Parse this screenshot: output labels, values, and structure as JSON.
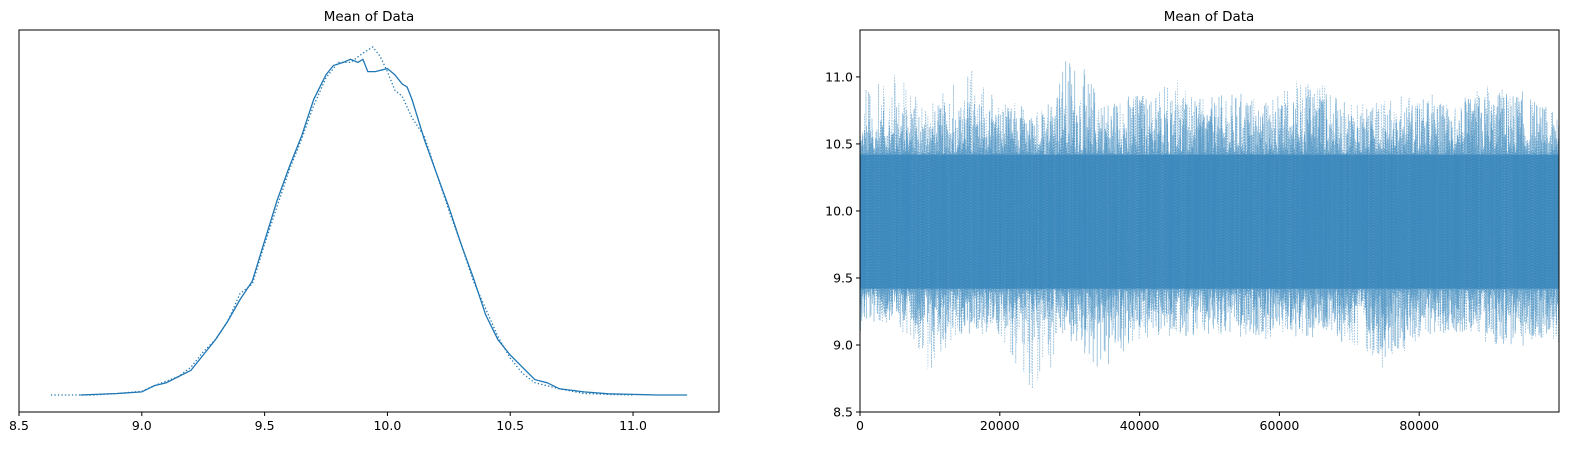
{
  "chart_data": [
    {
      "type": "line",
      "subtype": "density",
      "title": "Mean of Data",
      "xlabel": "",
      "ylabel": "",
      "xlim": [
        8.5,
        11.35
      ],
      "ylim": [
        0,
        1.2
      ],
      "xticks": [
        8.5,
        9.0,
        9.5,
        10.0,
        10.5,
        11.0
      ],
      "xtick_labels": [
        "8.5",
        "9.0",
        "9.5",
        "10.0",
        "10.5",
        "11.0"
      ],
      "yticks": [],
      "grid": false,
      "color": "#1f77b4",
      "series": [
        {
          "style": "solid",
          "x": [
            8.75,
            8.9,
            9.0,
            9.05,
            9.1,
            9.15,
            9.2,
            9.25,
            9.3,
            9.35,
            9.4,
            9.45,
            9.5,
            9.55,
            9.6,
            9.65,
            9.7,
            9.75,
            9.78,
            9.82,
            9.85,
            9.88,
            9.9,
            9.92,
            9.95,
            10.0,
            10.03,
            10.06,
            10.08,
            10.1,
            10.15,
            10.2,
            10.25,
            10.3,
            10.35,
            10.4,
            10.45,
            10.5,
            10.55,
            10.6,
            10.65,
            10.7,
            10.8,
            10.9,
            11.0,
            11.1,
            11.22
          ],
          "y": [
            0.0,
            0.005,
            0.01,
            0.03,
            0.04,
            0.06,
            0.08,
            0.13,
            0.18,
            0.24,
            0.31,
            0.37,
            0.5,
            0.63,
            0.74,
            0.84,
            0.96,
            1.04,
            1.07,
            1.08,
            1.09,
            1.08,
            1.09,
            1.05,
            1.05,
            1.06,
            1.04,
            1.01,
            1.0,
            0.96,
            0.83,
            0.72,
            0.61,
            0.49,
            0.38,
            0.26,
            0.18,
            0.13,
            0.09,
            0.05,
            0.04,
            0.02,
            0.01,
            0.004,
            0.002,
            0.0,
            0.0
          ]
        },
        {
          "style": "dotted",
          "x": [
            8.63,
            8.8,
            8.9,
            9.0,
            9.05,
            9.1,
            9.15,
            9.2,
            9.25,
            9.3,
            9.35,
            9.4,
            9.45,
            9.5,
            9.55,
            9.6,
            9.65,
            9.7,
            9.75,
            9.8,
            9.85,
            9.9,
            9.94,
            9.97,
            10.0,
            10.03,
            10.06,
            10.1,
            10.15,
            10.2,
            10.25,
            10.3,
            10.35,
            10.4,
            10.45,
            10.5,
            10.55,
            10.6,
            10.7,
            10.8,
            10.9,
            11.0
          ],
          "y": [
            0.0,
            0.0,
            0.005,
            0.012,
            0.03,
            0.045,
            0.06,
            0.09,
            0.14,
            0.18,
            0.24,
            0.33,
            0.36,
            0.49,
            0.61,
            0.73,
            0.83,
            0.94,
            1.03,
            1.08,
            1.08,
            1.11,
            1.13,
            1.1,
            1.05,
            0.99,
            0.97,
            0.9,
            0.84,
            0.72,
            0.6,
            0.49,
            0.37,
            0.28,
            0.19,
            0.12,
            0.07,
            0.04,
            0.02,
            0.005,
            0.002,
            0.0
          ]
        }
      ]
    },
    {
      "type": "line",
      "subtype": "trace",
      "title": "Mean of Data",
      "xlabel": "",
      "ylabel": "",
      "xlim": [
        0,
        100000
      ],
      "ylim": [
        8.5,
        11.35
      ],
      "xticks": [
        0,
        20000,
        40000,
        60000,
        80000
      ],
      "xtick_labels": [
        "0",
        "20000",
        "40000",
        "60000",
        "80000"
      ],
      "yticks": [
        8.5,
        9.0,
        9.5,
        10.0,
        10.5,
        11.0
      ],
      "ytick_labels": [
        "8.5",
        "9.0",
        "9.5",
        "10.0",
        "10.5",
        "11.0"
      ],
      "grid": false,
      "color": "#1f77b4",
      "band": {
        "low": 9.42,
        "high": 10.42
      },
      "series": [
        {
          "style": "solid",
          "x": [
            0,
            5000,
            10000,
            15000,
            20000,
            25000,
            30000,
            35000,
            40000,
            45000,
            50000,
            55000,
            60000,
            65000,
            70000,
            75000,
            80000,
            85000,
            90000,
            95000,
            100000
          ],
          "y_max": [
            10.65,
            10.8,
            10.75,
            10.85,
            10.8,
            10.7,
            11.21,
            10.85,
            10.9,
            10.8,
            10.85,
            10.9,
            10.8,
            10.95,
            10.8,
            10.75,
            10.85,
            10.8,
            10.9,
            10.9,
            10.7
          ],
          "y_min": [
            9.1,
            9.2,
            9.1,
            9.05,
            9.1,
            9.2,
            9.0,
            8.75,
            9.05,
            9.1,
            9.0,
            9.05,
            9.1,
            9.0,
            9.1,
            8.9,
            9.05,
            9.1,
            9.0,
            8.95,
            9.15
          ]
        },
        {
          "style": "dotted",
          "x": [
            0,
            5000,
            10000,
            15000,
            20000,
            25000,
            30000,
            35000,
            40000,
            45000,
            50000,
            55000,
            60000,
            65000,
            70000,
            75000,
            80000,
            85000,
            90000,
            95000,
            100000
          ],
          "y_max": [
            10.9,
            11.05,
            10.8,
            11.1,
            10.85,
            10.75,
            10.9,
            10.8,
            10.85,
            11.0,
            10.8,
            10.85,
            10.9,
            11.05,
            10.8,
            10.85,
            10.9,
            10.85,
            10.95,
            10.85,
            10.75
          ],
          "y_min": [
            9.2,
            9.15,
            8.8,
            9.1,
            9.05,
            8.63,
            9.05,
            9.1,
            9.0,
            9.05,
            9.1,
            9.0,
            9.05,
            9.1,
            9.0,
            8.82,
            9.05,
            9.1,
            9.0,
            9.05,
            9.0
          ]
        }
      ]
    }
  ]
}
